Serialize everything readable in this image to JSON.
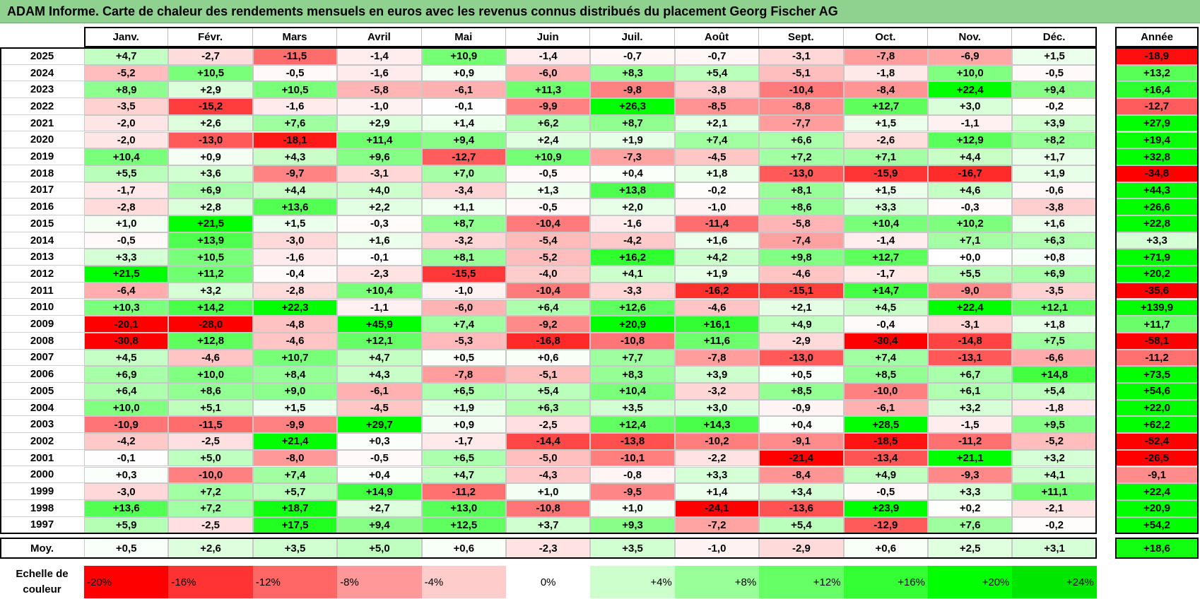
{
  "title": "ADAM Informe. Carte de chaleur des rendements mensuels en euros avec les revenus connus distribués du placement Georg Fischer AG",
  "chart_data": {
    "type": "heatmap",
    "months": [
      "Janv.",
      "Févr.",
      "Mars",
      "Avril",
      "Mai",
      "Juin",
      "Juil.",
      "Août",
      "Sept.",
      "Oct.",
      "Nov.",
      "Déc."
    ],
    "year_header": "Année",
    "rows": [
      {
        "year": "2025",
        "values": [
          "+4,7",
          "-2,7",
          "-11,5",
          "-1,4",
          "+10,9",
          "-1,4",
          "-0,7",
          "-0,7",
          "-3,1",
          "-7,8",
          "-6,9",
          "+1,5"
        ],
        "total": "-18,9"
      },
      {
        "year": "2024",
        "values": [
          "-5,2",
          "+10,5",
          "-0,5",
          "-1,6",
          "+0,9",
          "-6,0",
          "+8,3",
          "+5,4",
          "-5,1",
          "-1,8",
          "+10,0",
          "-0,5"
        ],
        "total": "+13,2"
      },
      {
        "year": "2023",
        "values": [
          "+8,9",
          "+2,9",
          "+10,5",
          "-5,8",
          "-6,1",
          "+11,3",
          "-9,8",
          "-3,8",
          "-10,4",
          "-8,4",
          "+22,4",
          "+9,4"
        ],
        "total": "+16,4"
      },
      {
        "year": "2022",
        "values": [
          "-3,5",
          "-15,2",
          "-1,6",
          "-1,0",
          "-0,1",
          "-9,9",
          "+26,3",
          "-8,5",
          "-8,8",
          "+12,7",
          "+3,0",
          "-0,2"
        ],
        "total": "-12,7"
      },
      {
        "year": "2021",
        "values": [
          "-2,0",
          "+2,6",
          "+7,6",
          "+2,9",
          "+1,4",
          "+6,2",
          "+8,7",
          "+2,1",
          "-7,7",
          "+1,5",
          "-1,1",
          "+3,9"
        ],
        "total": "+27,9"
      },
      {
        "year": "2020",
        "values": [
          "-2,0",
          "-13,0",
          "-18,1",
          "+11,4",
          "+9,4",
          "+2,4",
          "+1,9",
          "+7,4",
          "+6,6",
          "-2,6",
          "+12,9",
          "+8,2"
        ],
        "total": "+19,4"
      },
      {
        "year": "2019",
        "values": [
          "+10,4",
          "+0,9",
          "+4,3",
          "+9,6",
          "-12,7",
          "+10,9",
          "-7,3",
          "-4,5",
          "+7,2",
          "+7,1",
          "+4,4",
          "+1,7"
        ],
        "total": "+32,8"
      },
      {
        "year": "2018",
        "values": [
          "+5,5",
          "+3,6",
          "-9,7",
          "-3,1",
          "+7,0",
          "-0,5",
          "+0,4",
          "+1,8",
          "-13,0",
          "-15,9",
          "-16,7",
          "+1,9"
        ],
        "total": "-34,8"
      },
      {
        "year": "2017",
        "values": [
          "-1,7",
          "+6,9",
          "+4,4",
          "+4,0",
          "-3,4",
          "+1,3",
          "+13,8",
          "-0,2",
          "+8,1",
          "+1,5",
          "+4,6",
          "-0,6"
        ],
        "total": "+44,3"
      },
      {
        "year": "2016",
        "values": [
          "-2,8",
          "+2,8",
          "+13,6",
          "+2,2",
          "+1,1",
          "-0,5",
          "+2,0",
          "-1,0",
          "+8,6",
          "+3,3",
          "-0,3",
          "-3,8"
        ],
        "total": "+26,6"
      },
      {
        "year": "2015",
        "values": [
          "+1,0",
          "+21,5",
          "+1,5",
          "-0,3",
          "+8,7",
          "-10,4",
          "-1,6",
          "-11,4",
          "-5,8",
          "+10,4",
          "+10,2",
          "+1,6"
        ],
        "total": "+22,8"
      },
      {
        "year": "2014",
        "values": [
          "-0,5",
          "+13,9",
          "-3,0",
          "+1,6",
          "-3,2",
          "-5,4",
          "-4,2",
          "+1,6",
          "-7,4",
          "-1,4",
          "+7,1",
          "+6,3"
        ],
        "total": "+3,3"
      },
      {
        "year": "2013",
        "values": [
          "+3,3",
          "+10,5",
          "-1,6",
          "-0,1",
          "+8,1",
          "-5,2",
          "+16,2",
          "+4,2",
          "+9,8",
          "+12,7",
          "+0,0",
          "+0,8"
        ],
        "total": "+71,9"
      },
      {
        "year": "2012",
        "values": [
          "+21,5",
          "+11,2",
          "-0,4",
          "-2,3",
          "-15,5",
          "-4,0",
          "+4,1",
          "+1,9",
          "-4,6",
          "-1,7",
          "+5,5",
          "+6,9"
        ],
        "total": "+20,2"
      },
      {
        "year": "2011",
        "values": [
          "-6,4",
          "+3,2",
          "-2,8",
          "+10,4",
          "-1,0",
          "-10,4",
          "-3,3",
          "-16,2",
          "-15,1",
          "+14,7",
          "-9,0",
          "-3,5"
        ],
        "total": "-35,6"
      },
      {
        "year": "2010",
        "values": [
          "+10,3",
          "+14,2",
          "+22,3",
          "-1,1",
          "-6,0",
          "+6,4",
          "+12,6",
          "-4,6",
          "+2,1",
          "+4,5",
          "+22,4",
          "+12,1"
        ],
        "total": "+139,9"
      },
      {
        "year": "2009",
        "values": [
          "-20,1",
          "-28,0",
          "-4,8",
          "+45,9",
          "+7,4",
          "-9,2",
          "+20,9",
          "+16,1",
          "+4,9",
          "-0,4",
          "-3,1",
          "+1,8"
        ],
        "total": "+11,7"
      },
      {
        "year": "2008",
        "values": [
          "-30,8",
          "+12,8",
          "-4,6",
          "+12,1",
          "-5,3",
          "-16,8",
          "-10,8",
          "+11,6",
          "-2,9",
          "-30,4",
          "-14,8",
          "+7,5"
        ],
        "total": "-58,1"
      },
      {
        "year": "2007",
        "values": [
          "+4,5",
          "-4,6",
          "+10,7",
          "+4,7",
          "+0,5",
          "+0,6",
          "+7,7",
          "-7,8",
          "-13,0",
          "+7,4",
          "-13,1",
          "-6,6"
        ],
        "total": "-11,2"
      },
      {
        "year": "2006",
        "values": [
          "+6,9",
          "+10,0",
          "+8,4",
          "+4,3",
          "-7,8",
          "-5,1",
          "+8,3",
          "+3,9",
          "+0,5",
          "+8,5",
          "+6,7",
          "+14,8"
        ],
        "total": "+73,5"
      },
      {
        "year": "2005",
        "values": [
          "+6,4",
          "+8,6",
          "+9,0",
          "-6,1",
          "+6,5",
          "+5,4",
          "+10,4",
          "-3,2",
          "+8,5",
          "-10,0",
          "+6,1",
          "+5,4"
        ],
        "total": "+54,6"
      },
      {
        "year": "2004",
        "values": [
          "+10,0",
          "+5,1",
          "+1,5",
          "-4,5",
          "+1,9",
          "+6,3",
          "+3,5",
          "+3,0",
          "-0,9",
          "-6,1",
          "+3,2",
          "-1,8"
        ],
        "total": "+22,0"
      },
      {
        "year": "2003",
        "values": [
          "-10,9",
          "-11,5",
          "-9,9",
          "+29,7",
          "+0,9",
          "-2,5",
          "+12,4",
          "+14,3",
          "+0,4",
          "+28,5",
          "-1,5",
          "+9,5"
        ],
        "total": "+62,2"
      },
      {
        "year": "2002",
        "values": [
          "-4,2",
          "-2,5",
          "+21,4",
          "+0,3",
          "-1,7",
          "-14,4",
          "-13,8",
          "-10,2",
          "-9,1",
          "-18,5",
          "-11,2",
          "-5,2"
        ],
        "total": "-52,4"
      },
      {
        "year": "2001",
        "values": [
          "-0,1",
          "+5,0",
          "-8,0",
          "-0,5",
          "+6,5",
          "-5,0",
          "-10,1",
          "-2,2",
          "-21,4",
          "-13,4",
          "+21,1",
          "+3,2"
        ],
        "total": "-26,5"
      },
      {
        "year": "2000",
        "values": [
          "+0,3",
          "-10,0",
          "+7,4",
          "+0,4",
          "+4,7",
          "-4,3",
          "-0,8",
          "+3,3",
          "-8,4",
          "+4,9",
          "-9,3",
          "+4,1"
        ],
        "total": "-9,1"
      },
      {
        "year": "1999",
        "values": [
          "-3,0",
          "+7,2",
          "+5,7",
          "+14,9",
          "-11,2",
          "+1,0",
          "-9,5",
          "+1,4",
          "+3,4",
          "-0,5",
          "+3,3",
          "+11,1"
        ],
        "total": "+22,4"
      },
      {
        "year": "1998",
        "values": [
          "+13,6",
          "+7,2",
          "+18,7",
          "+2,7",
          "+13,0",
          "-10,8",
          "+1,0",
          "-24,1",
          "-13,6",
          "+23,9",
          "+0,2",
          "-2,1"
        ],
        "total": "+20,9"
      },
      {
        "year": "1997",
        "values": [
          "+5,9",
          "-2,5",
          "+17,5",
          "+9,4",
          "+12,5",
          "+3,7",
          "+9,3",
          "-7,2",
          "+5,4",
          "-12,9",
          "+7,6",
          "-0,2"
        ],
        "total": "+54,2"
      }
    ],
    "average": {
      "label": "Moy.",
      "values": [
        "+0,5",
        "+2,6",
        "+3,5",
        "+5,0",
        "+0,6",
        "-2,3",
        "+3,5",
        "-1,0",
        "-2,9",
        "+0,6",
        "+2,5",
        "+3,1"
      ],
      "total": "+18,6"
    },
    "color_scale": {
      "label": "Echelle de couleur",
      "steps": [
        {
          "text": "-20%",
          "value": -20,
          "color": "#ff0000",
          "align": "left"
        },
        {
          "text": "-16%",
          "value": -16,
          "color": "#ff3333",
          "align": "left"
        },
        {
          "text": "-12%",
          "value": -12,
          "color": "#ff6666",
          "align": "left"
        },
        {
          "text": "-8%",
          "value": -8,
          "color": "#ff9999",
          "align": "left"
        },
        {
          "text": "-4%",
          "value": -4,
          "color": "#ffcccc",
          "align": "left"
        },
        {
          "text": "0%",
          "value": 0,
          "color": "#ffffff",
          "align": "center"
        },
        {
          "text": "+4%",
          "value": 4,
          "color": "#ccffcc",
          "align": "right"
        },
        {
          "text": "+8%",
          "value": 8,
          "color": "#99ff99",
          "align": "right"
        },
        {
          "text": "+12%",
          "value": 12,
          "color": "#66ff66",
          "align": "right"
        },
        {
          "text": "+16%",
          "value": 16,
          "color": "#33ff33",
          "align": "right"
        },
        {
          "text": "+20%",
          "value": 20,
          "color": "#00ff00",
          "align": "right"
        },
        {
          "text": "+24%",
          "value": 24,
          "color": "#00e600",
          "align": "right"
        }
      ]
    }
  }
}
